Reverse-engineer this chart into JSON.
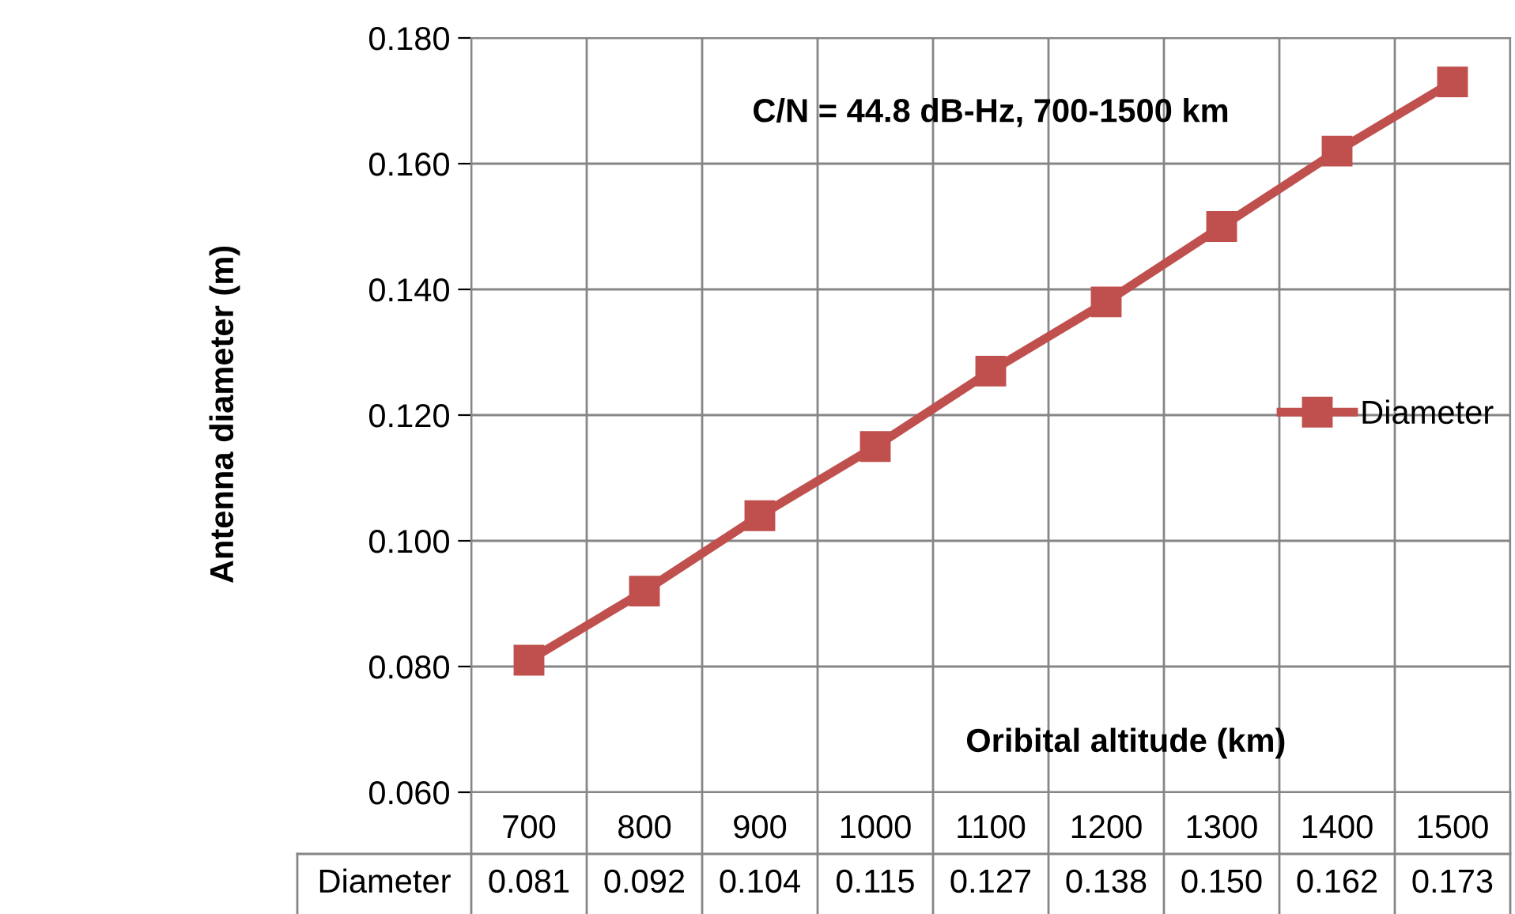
{
  "chart_data": {
    "type": "line",
    "title": "C/N = 44.8 dB-Hz, 700-1500 km",
    "xlabel": "Oribital altitude (km)",
    "ylabel": "Antenna diameter (m)",
    "categories": [
      "700",
      "800",
      "900",
      "1000",
      "1100",
      "1200",
      "1300",
      "1400",
      "1500"
    ],
    "series": [
      {
        "name": "Diameter",
        "color": "#c0504d",
        "values": [
          0.081,
          0.092,
          0.104,
          0.115,
          0.127,
          0.138,
          0.15,
          0.162,
          0.173
        ],
        "value_labels": [
          "0.081",
          "0.092",
          "0.104",
          "0.115",
          "0.127",
          "0.138",
          "0.150",
          "0.162",
          "0.173"
        ]
      }
    ],
    "ylim": [
      0.06,
      0.18
    ],
    "yticks": [
      {
        "value": 0.06,
        "label": "0.060"
      },
      {
        "value": 0.08,
        "label": "0.080"
      },
      {
        "value": 0.1,
        "label": "0.100"
      },
      {
        "value": 0.12,
        "label": "0.120"
      },
      {
        "value": 0.14,
        "label": "0.140"
      },
      {
        "value": 0.16,
        "label": "0.160"
      },
      {
        "value": 0.18,
        "label": "0.180"
      }
    ],
    "grid": true,
    "legend": "right",
    "marker": "square",
    "line_style": "solid"
  }
}
